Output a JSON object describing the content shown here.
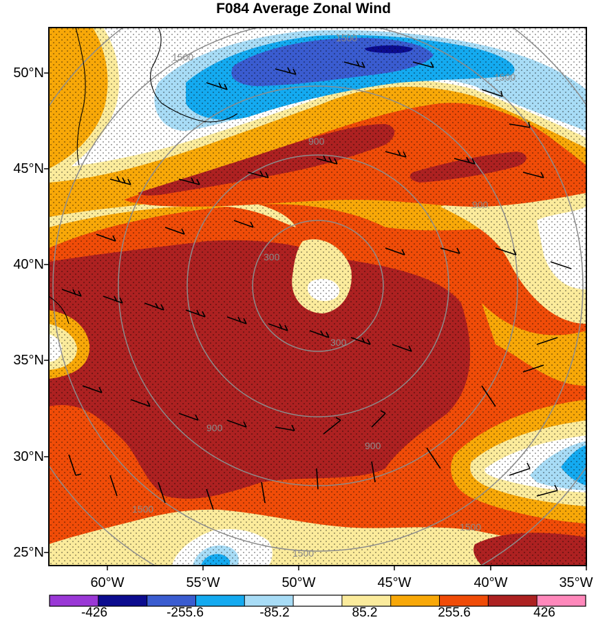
{
  "title": "F084 Average Zonal Wind",
  "lat_labels": [
    "50°N",
    "45°N",
    "40°N",
    "35°N",
    "30°N",
    "25°N"
  ],
  "lon_labels": [
    "60°W",
    "55°W",
    "50°W",
    "45°W",
    "40°W",
    "35°W"
  ],
  "colorbar": {
    "labels": [
      "-426",
      "-255.6",
      "-85.2",
      "85.2",
      "255.6",
      "426"
    ],
    "colors": [
      "#9a38d6",
      "#0c0c8f",
      "#3a5cd0",
      "#14aaf0",
      "#a8dcf6",
      "#ffffff",
      "#fbeb9c",
      "#f8a808",
      "#f04c08",
      "#ad2121",
      "#ff88bb"
    ]
  },
  "contour_labels": [
    "300",
    "300",
    "900",
    "900",
    "900",
    "900",
    "1500",
    "1500",
    "1500",
    "1500",
    "1500",
    "1500"
  ]
}
